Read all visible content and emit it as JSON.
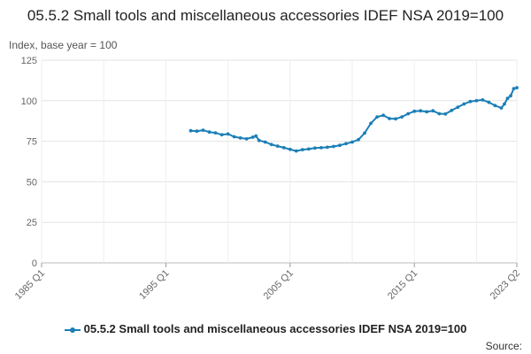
{
  "chart_data": {
    "type": "line",
    "title": "05.5.2 Small tools and miscellaneous accessories IDEF NSA 2019=100",
    "ylabel": "Index, base year = 100",
    "xlabel": "",
    "ylim": [
      0,
      125
    ],
    "yticks": [
      0,
      25,
      50,
      75,
      100,
      125
    ],
    "xticks": [
      "1985 Q1",
      "1995 Q1",
      "2005 Q1",
      "2015 Q1",
      "2023 Q2"
    ],
    "x_range": [
      "1985 Q1",
      "2023 Q2"
    ],
    "grid": true,
    "legend_position": "bottom",
    "series": [
      {
        "name": "05.5.2 Small tools and miscellaneous accessories IDEF NSA 2019=100",
        "color": "#1a7fb6",
        "points": [
          [
            "1997 Q1",
            81.5
          ],
          [
            "1997 Q3",
            81.2
          ],
          [
            "1998 Q1",
            81.8
          ],
          [
            "1998 Q3",
            80.7
          ],
          [
            "1999 Q1",
            80.2
          ],
          [
            "1999 Q3",
            79.0
          ],
          [
            "2000 Q1",
            79.5
          ],
          [
            "2000 Q3",
            77.8
          ],
          [
            "2001 Q1",
            77.0
          ],
          [
            "2001 Q3",
            76.5
          ],
          [
            "2002 Q1",
            77.5
          ],
          [
            "2002 Q2",
            78.2
          ],
          [
            "2002 Q3",
            75.5
          ],
          [
            "2003 Q1",
            74.5
          ],
          [
            "2003 Q3",
            73.0
          ],
          [
            "2004 Q1",
            72.0
          ],
          [
            "2004 Q3",
            71.0
          ],
          [
            "2005 Q1",
            70.0
          ],
          [
            "2005 Q3",
            69.0
          ],
          [
            "2006 Q1",
            69.8
          ],
          [
            "2006 Q3",
            70.2
          ],
          [
            "2007 Q1",
            70.8
          ],
          [
            "2007 Q3",
            71.0
          ],
          [
            "2008 Q1",
            71.3
          ],
          [
            "2008 Q3",
            71.8
          ],
          [
            "2009 Q1",
            72.5
          ],
          [
            "2009 Q3",
            73.5
          ],
          [
            "2010 Q1",
            74.5
          ],
          [
            "2010 Q3",
            76.0
          ],
          [
            "2011 Q1",
            80.0
          ],
          [
            "2011 Q3",
            86.0
          ],
          [
            "2012 Q1",
            90.0
          ],
          [
            "2012 Q3",
            91.0
          ],
          [
            "2013 Q1",
            89.0
          ],
          [
            "2013 Q3",
            88.8
          ],
          [
            "2014 Q1",
            90.0
          ],
          [
            "2014 Q3",
            92.0
          ],
          [
            "2015 Q1",
            93.5
          ],
          [
            "2015 Q3",
            93.8
          ],
          [
            "2016 Q1",
            93.2
          ],
          [
            "2016 Q3",
            93.8
          ],
          [
            "2017 Q1",
            92.0
          ],
          [
            "2017 Q3",
            91.8
          ],
          [
            "2018 Q1",
            94.0
          ],
          [
            "2018 Q3",
            96.0
          ],
          [
            "2019 Q1",
            98.0
          ],
          [
            "2019 Q3",
            99.5
          ],
          [
            "2020 Q1",
            100.0
          ],
          [
            "2020 Q3",
            100.5
          ],
          [
            "2021 Q1",
            99.0
          ],
          [
            "2021 Q3",
            97.0
          ],
          [
            "2022 Q1",
            95.5
          ],
          [
            "2022 Q2",
            98.0
          ],
          [
            "2022 Q3",
            101.5
          ],
          [
            "2022 Q4",
            103.0
          ],
          [
            "2023 Q1",
            107.5
          ],
          [
            "2023 Q2",
            108.0
          ]
        ]
      }
    ]
  },
  "legend": {
    "label": "05.5.2 Small tools and miscellaneous accessories IDEF NSA 2019=100"
  },
  "footer": {
    "source_label": "Source:"
  }
}
